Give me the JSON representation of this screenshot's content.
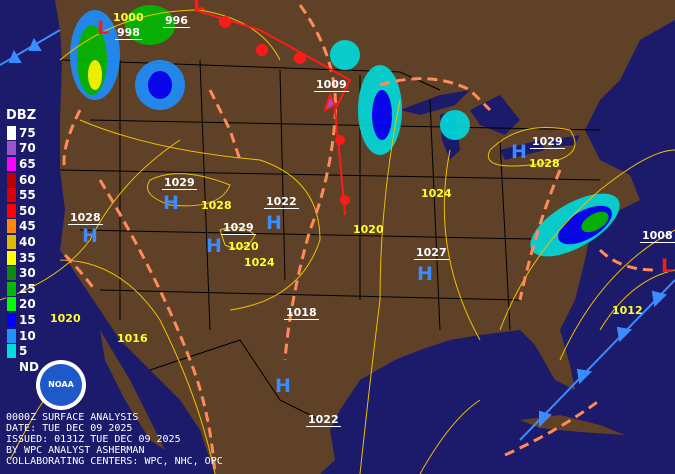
{
  "legend": {
    "title": "DBZ",
    "items": [
      {
        "label": "75",
        "color": "#ffffff"
      },
      {
        "label": "70",
        "color": "#9955cc"
      },
      {
        "label": "65",
        "color": "#ff00ff"
      },
      {
        "label": "60",
        "color": "#bb0000"
      },
      {
        "label": "55",
        "color": "#dd0000"
      },
      {
        "label": "50",
        "color": "#ff0000"
      },
      {
        "label": "45",
        "color": "#ff8800"
      },
      {
        "label": "40",
        "color": "#ddbb00"
      },
      {
        "label": "35",
        "color": "#ffff00"
      },
      {
        "label": "30",
        "color": "#118811"
      },
      {
        "label": "25",
        "color": "#00bb00"
      },
      {
        "label": "20",
        "color": "#00ff00"
      },
      {
        "label": "15",
        "color": "#0000ff"
      },
      {
        "label": "10",
        "color": "#1e90ff"
      },
      {
        "label": "5",
        "color": "#00dddd"
      },
      {
        "label": "ND",
        "color": "#1b1a6b"
      }
    ]
  },
  "logo": {
    "text": "NOAA"
  },
  "footer": [
    "0000Z SURFACE ANALYSIS",
    "DATE: TUE DEC 09 2025",
    "ISSUED: 0131Z TUE DEC 09 2025",
    "BY WPC ANALYST ASHERMAN",
    "COLLABORATING CENTERS: WPC, NHC, OPC"
  ],
  "center_pressures": [
    "998",
    "996",
    "1009",
    "1029",
    "1029",
    "1022",
    "1029",
    "1028",
    "1027",
    "1008",
    "1018",
    "1022"
  ],
  "isobar_labels": [
    "1000",
    "1028",
    "1020",
    "1024",
    "1020",
    "1024",
    "1028",
    "1012",
    "1020",
    "1016"
  ],
  "pressure_centers": {
    "high": "H",
    "low": "L"
  },
  "colors": {
    "land": "#5e4127",
    "ocean": "#1b1a6b",
    "isobar": "#f0c000",
    "trough": "#ff8a5a",
    "cold_front": "#3a8cff",
    "warm_front": "#ff1a1a",
    "high": "#3a8cff",
    "low": "#ff1a1a"
  }
}
